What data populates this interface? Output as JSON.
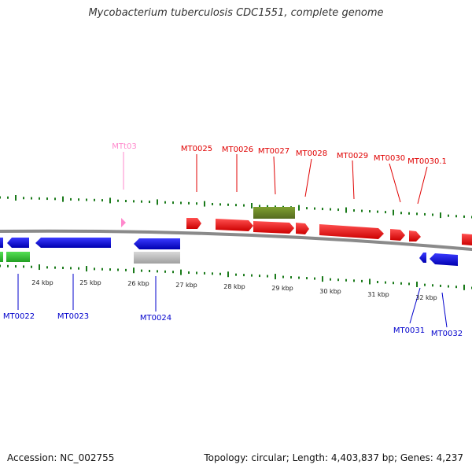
{
  "title": "Mycobacterium tuberculosis CDC1551, complete genome",
  "footer": {
    "accession": "Accession: NC_002755",
    "summary": "Topology: circular; Length: 4,403,837 bp; Genes: 4,237"
  },
  "colors": {
    "forward_cds": "#ff0000",
    "reverse_cds": "#0000ff",
    "trna": "#ff88cc",
    "olive_feature": "#6b8e23",
    "green_feature": "#33cc33",
    "gray_feature": "#bbbbbb",
    "tick": "#1a7a1a",
    "backbone": "#888888",
    "label_forward": "#e00000",
    "label_reverse": "#0000cc"
  },
  "scale_labels": [
    "24 kbp",
    "25 kbp",
    "26 kbp",
    "27 kbp",
    "28 kbp",
    "29 kbp",
    "30 kbp",
    "31 kbp",
    "32 kbp"
  ],
  "upper_labels": [
    {
      "text": "MTt03",
      "kind": "trna"
    },
    {
      "text": "MT0025",
      "kind": "forward"
    },
    {
      "text": "MT0026",
      "kind": "forward"
    },
    {
      "text": "MT0027",
      "kind": "forward"
    },
    {
      "text": "MT0028",
      "kind": "forward"
    },
    {
      "text": "MT0029",
      "kind": "forward"
    },
    {
      "text": "MT0030",
      "kind": "forward"
    },
    {
      "text": "MT0030.1",
      "kind": "forward"
    }
  ],
  "lower_labels": [
    {
      "text": "MT0022",
      "kind": "reverse"
    },
    {
      "text": "MT0023",
      "kind": "reverse"
    },
    {
      "text": "MT0024",
      "kind": "reverse"
    },
    {
      "text": "MT0031",
      "kind": "reverse"
    },
    {
      "text": "MT0032",
      "kind": "reverse"
    }
  ]
}
